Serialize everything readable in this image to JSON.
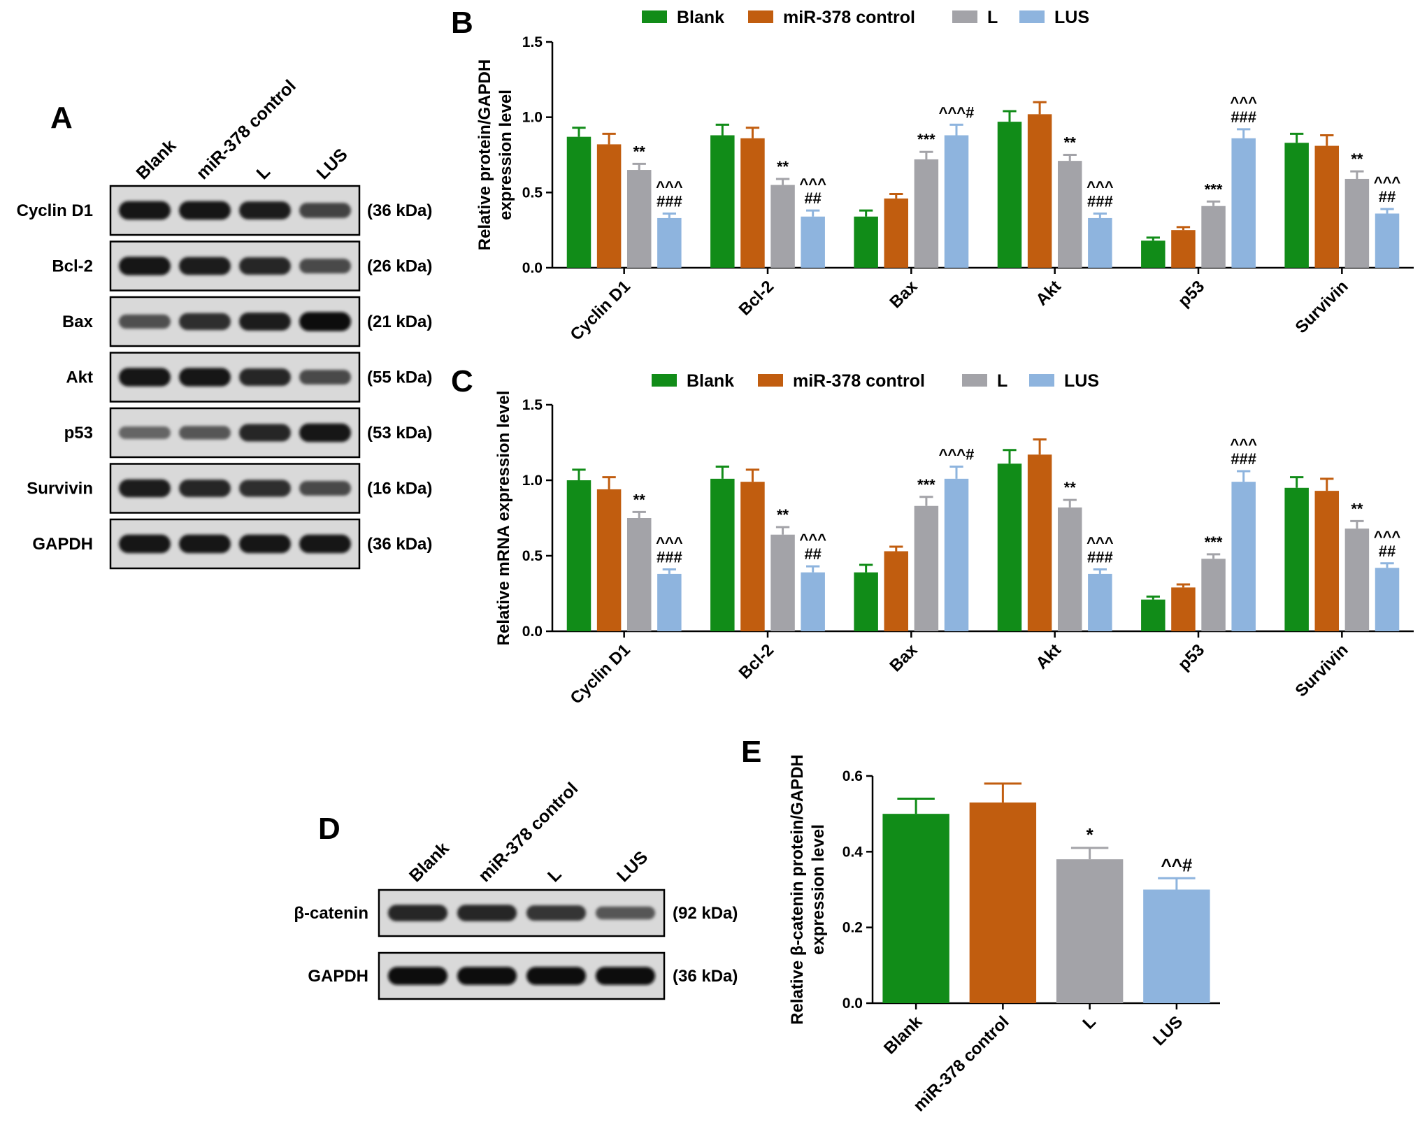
{
  "figure": {
    "panels": [
      {
        "letter": "A"
      },
      {
        "letter": "B"
      },
      {
        "letter": "C"
      },
      {
        "letter": "D"
      },
      {
        "letter": "E"
      }
    ]
  },
  "colors": {
    "Blank": "#118C18",
    "miR-378 control": "#C15D0F",
    "L": "#A3A3A8",
    "LUS": "#8EB4DE"
  },
  "blot_a": {
    "lanes": [
      "Blank",
      "miR-378 control",
      "L",
      "LUS"
    ],
    "rows": [
      {
        "label": "Cyclin D1",
        "kda": "(36 kDa)",
        "intensity": [
          0.9,
          0.9,
          0.85,
          0.6
        ]
      },
      {
        "label": "Bcl-2",
        "kda": "(26 kDa)",
        "intensity": [
          0.9,
          0.85,
          0.8,
          0.55
        ]
      },
      {
        "label": "Bax",
        "kda": "(21 kDa)",
        "intensity": [
          0.5,
          0.75,
          0.85,
          0.95
        ]
      },
      {
        "label": "Akt",
        "kda": "(55 kDa)",
        "intensity": [
          0.9,
          0.9,
          0.8,
          0.55
        ]
      },
      {
        "label": "p53",
        "kda": "(53 kDa)",
        "intensity": [
          0.35,
          0.45,
          0.8,
          0.9
        ]
      },
      {
        "label": "Survivin",
        "kda": "(16 kDa)",
        "intensity": [
          0.85,
          0.8,
          0.75,
          0.55
        ]
      },
      {
        "label": "GAPDH",
        "kda": "(36 kDa)",
        "intensity": [
          0.9,
          0.9,
          0.9,
          0.9
        ]
      }
    ]
  },
  "blot_d": {
    "lanes": [
      "Blank",
      "miR-378 control",
      "L",
      "LUS"
    ],
    "rows": [
      {
        "label": "β-catenin",
        "kda": "(92 kDa)",
        "intensity": [
          0.8,
          0.8,
          0.7,
          0.45
        ]
      },
      {
        "label": "GAPDH",
        "kda": "(36 kDa)",
        "intensity": [
          0.95,
          0.95,
          0.95,
          0.95
        ]
      }
    ]
  },
  "chart_data": [
    {
      "panel": "B",
      "type": "bar",
      "ylabel": [
        "Relative protein/GAPDH",
        "expression level"
      ],
      "ylim": [
        0,
        1.5
      ],
      "yticks": [
        "0.0",
        "0.5",
        "1.0",
        "1.5"
      ],
      "legend": "top",
      "categories": [
        "Cyclin D1",
        "Bcl-2",
        "Bax",
        "Akt",
        "p53",
        "Survivin"
      ],
      "series": [
        {
          "name": "Blank",
          "values": [
            0.87,
            0.88,
            0.34,
            0.97,
            0.18,
            0.83
          ],
          "errors": [
            0.06,
            0.07,
            0.04,
            0.07,
            0.02,
            0.06
          ]
        },
        {
          "name": "miR-378 control",
          "values": [
            0.82,
            0.86,
            0.46,
            1.02,
            0.25,
            0.81
          ],
          "errors": [
            0.07,
            0.07,
            0.03,
            0.08,
            0.02,
            0.07
          ]
        },
        {
          "name": "L",
          "values": [
            0.65,
            0.55,
            0.72,
            0.71,
            0.41,
            0.59
          ],
          "errors": [
            0.04,
            0.04,
            0.05,
            0.04,
            0.03,
            0.05
          ]
        },
        {
          "name": "LUS",
          "values": [
            0.33,
            0.34,
            0.88,
            0.33,
            0.86,
            0.36
          ],
          "errors": [
            0.03,
            0.04,
            0.07,
            0.03,
            0.06,
            0.03
          ]
        }
      ],
      "annotations": [
        {
          "category": 0,
          "series": 2,
          "lines": [
            "**"
          ]
        },
        {
          "category": 0,
          "series": 3,
          "lines": [
            "^^^",
            "###"
          ]
        },
        {
          "category": 1,
          "series": 2,
          "lines": [
            "**"
          ]
        },
        {
          "category": 1,
          "series": 3,
          "lines": [
            "^^^",
            "##"
          ]
        },
        {
          "category": 2,
          "series": 2,
          "lines": [
            "***"
          ]
        },
        {
          "category": 2,
          "series": 3,
          "lines": [
            "^^^#"
          ]
        },
        {
          "category": 3,
          "series": 2,
          "lines": [
            "**"
          ]
        },
        {
          "category": 3,
          "series": 3,
          "lines": [
            "^^^",
            "###"
          ]
        },
        {
          "category": 4,
          "series": 2,
          "lines": [
            "***"
          ]
        },
        {
          "category": 4,
          "series": 3,
          "lines": [
            "^^^",
            "###"
          ]
        },
        {
          "category": 5,
          "series": 2,
          "lines": [
            "**"
          ]
        },
        {
          "category": 5,
          "series": 3,
          "lines": [
            "^^^",
            "##"
          ]
        }
      ]
    },
    {
      "panel": "C",
      "type": "bar",
      "ylabel": [
        "Relative mRNA expression level"
      ],
      "ylim": [
        0,
        1.5
      ],
      "yticks": [
        "0.0",
        "0.5",
        "1.0",
        "1.5"
      ],
      "legend": "top",
      "categories": [
        "Cyclin D1",
        "Bcl-2",
        "Bax",
        "Akt",
        "p53",
        "Survivin"
      ],
      "series": [
        {
          "name": "Blank",
          "values": [
            1.0,
            1.01,
            0.39,
            1.11,
            0.21,
            0.95
          ],
          "errors": [
            0.07,
            0.08,
            0.05,
            0.09,
            0.02,
            0.07
          ]
        },
        {
          "name": "miR-378 control",
          "values": [
            0.94,
            0.99,
            0.53,
            1.17,
            0.29,
            0.93
          ],
          "errors": [
            0.08,
            0.08,
            0.03,
            0.1,
            0.02,
            0.08
          ]
        },
        {
          "name": "L",
          "values": [
            0.75,
            0.64,
            0.83,
            0.82,
            0.48,
            0.68
          ],
          "errors": [
            0.04,
            0.05,
            0.06,
            0.05,
            0.03,
            0.05
          ]
        },
        {
          "name": "LUS",
          "values": [
            0.38,
            0.39,
            1.01,
            0.38,
            0.99,
            0.42
          ],
          "errors": [
            0.03,
            0.04,
            0.08,
            0.03,
            0.07,
            0.03
          ]
        }
      ],
      "annotations": [
        {
          "category": 0,
          "series": 2,
          "lines": [
            "**"
          ]
        },
        {
          "category": 0,
          "series": 3,
          "lines": [
            "^^^",
            "###"
          ]
        },
        {
          "category": 1,
          "series": 2,
          "lines": [
            "**"
          ]
        },
        {
          "category": 1,
          "series": 3,
          "lines": [
            "^^^",
            "##"
          ]
        },
        {
          "category": 2,
          "series": 2,
          "lines": [
            "***"
          ]
        },
        {
          "category": 2,
          "series": 3,
          "lines": [
            "^^^#"
          ]
        },
        {
          "category": 3,
          "series": 2,
          "lines": [
            "**"
          ]
        },
        {
          "category": 3,
          "series": 3,
          "lines": [
            "^^^",
            "###"
          ]
        },
        {
          "category": 4,
          "series": 2,
          "lines": [
            "***"
          ]
        },
        {
          "category": 4,
          "series": 3,
          "lines": [
            "^^^",
            "###"
          ]
        },
        {
          "category": 5,
          "series": 2,
          "lines": [
            "**"
          ]
        },
        {
          "category": 5,
          "series": 3,
          "lines": [
            "^^^",
            "##"
          ]
        }
      ]
    },
    {
      "panel": "E",
      "type": "bar",
      "ylabel": [
        "Relative β-catenin protein/GAPDH",
        "expression level"
      ],
      "ylim": [
        0,
        0.6
      ],
      "yticks": [
        "0.0",
        "0.2",
        "0.4",
        "0.6"
      ],
      "categories": [
        "Blank",
        "miR-378 control",
        "L",
        "LUS"
      ],
      "series": [
        {
          "name": "",
          "values": [
            0.5,
            0.53,
            0.38,
            0.3
          ],
          "errors": [
            0.04,
            0.05,
            0.03,
            0.03
          ]
        }
      ],
      "annotations": [
        {
          "category": 2,
          "series": 0,
          "lines": [
            "*"
          ]
        },
        {
          "category": 3,
          "series": 0,
          "lines": [
            "^^#"
          ]
        }
      ]
    }
  ]
}
